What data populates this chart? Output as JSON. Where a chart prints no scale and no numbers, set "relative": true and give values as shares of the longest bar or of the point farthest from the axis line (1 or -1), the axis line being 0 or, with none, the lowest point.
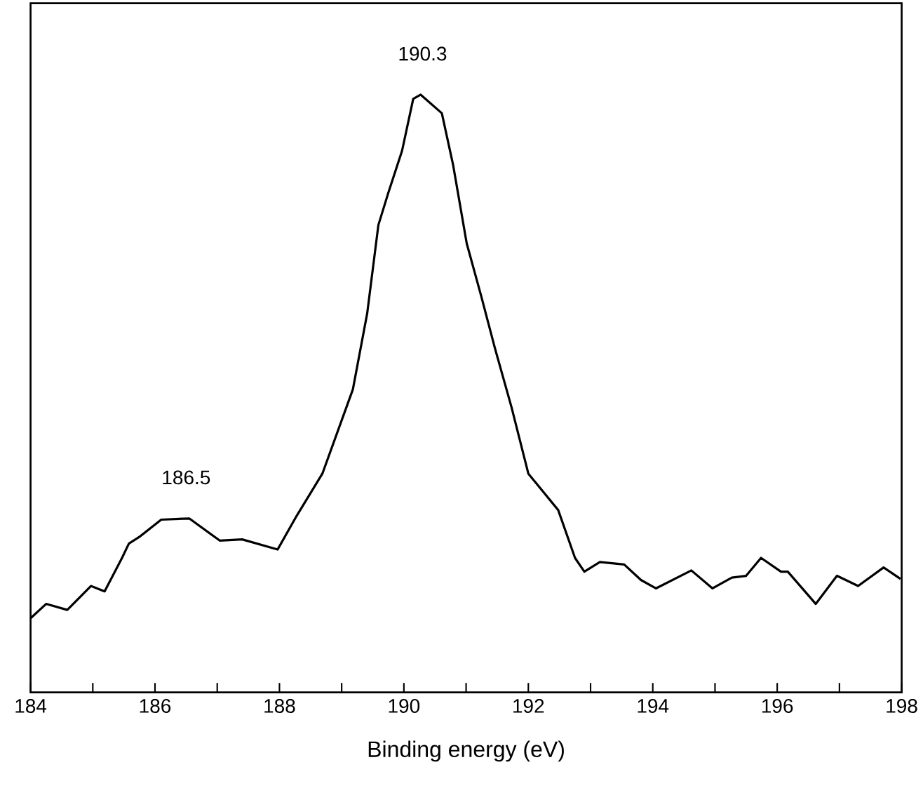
{
  "chart_data": {
    "type": "line",
    "relative": true,
    "xlabel": "Binding energy (eV)",
    "xlim": [
      184,
      198
    ],
    "xticks": [
      184,
      {
        "value": 185,
        "label": null
      },
      186,
      {
        "value": 187,
        "label": null
      },
      188,
      {
        "value": 189,
        "label": null
      },
      190,
      {
        "value": 191,
        "label": null
      },
      192,
      {
        "value": 193,
        "label": null
      },
      194,
      {
        "value": 195,
        "label": null
      },
      196,
      {
        "value": 197,
        "label": null
      },
      198
    ],
    "tick_labels": "x",
    "grid": false,
    "marker": "none",
    "line_style": "solid",
    "annotations": [
      {
        "text": "186.5",
        "x": 186.5,
        "y": 0.291
      },
      {
        "text": "190.3",
        "x": 190.3,
        "y": 1.0
      }
    ],
    "series": [
      {
        "color": "#000000",
        "x": [
          184.0,
          184.25,
          184.59,
          184.97,
          185.19,
          185.47,
          185.58,
          185.76,
          186.1,
          186.55,
          187.04,
          187.4,
          187.97,
          188.28,
          188.69,
          189.18,
          189.41,
          189.59,
          189.75,
          189.97,
          190.15,
          190.27,
          190.61,
          190.79,
          191.01,
          191.24,
          191.46,
          191.73,
          192.0,
          192.48,
          192.75,
          192.9,
          193.15,
          193.54,
          193.81,
          194.05,
          194.62,
          194.96,
          195.27,
          195.5,
          195.74,
          196.06,
          196.17,
          196.62,
          196.96,
          197.3,
          197.71,
          197.98
        ],
        "values": [
          0.124,
          0.148,
          0.138,
          0.178,
          0.169,
          0.225,
          0.249,
          0.261,
          0.289,
          0.291,
          0.254,
          0.256,
          0.239,
          0.296,
          0.366,
          0.507,
          0.634,
          0.782,
          0.836,
          0.906,
          0.993,
          1.0,
          0.969,
          0.883,
          0.751,
          0.664,
          0.577,
          0.477,
          0.366,
          0.305,
          0.225,
          0.202,
          0.218,
          0.214,
          0.188,
          0.174,
          0.204,
          0.174,
          0.192,
          0.195,
          0.225,
          0.202,
          0.202,
          0.148,
          0.195,
          0.178,
          0.209,
          0.19
        ]
      }
    ]
  }
}
